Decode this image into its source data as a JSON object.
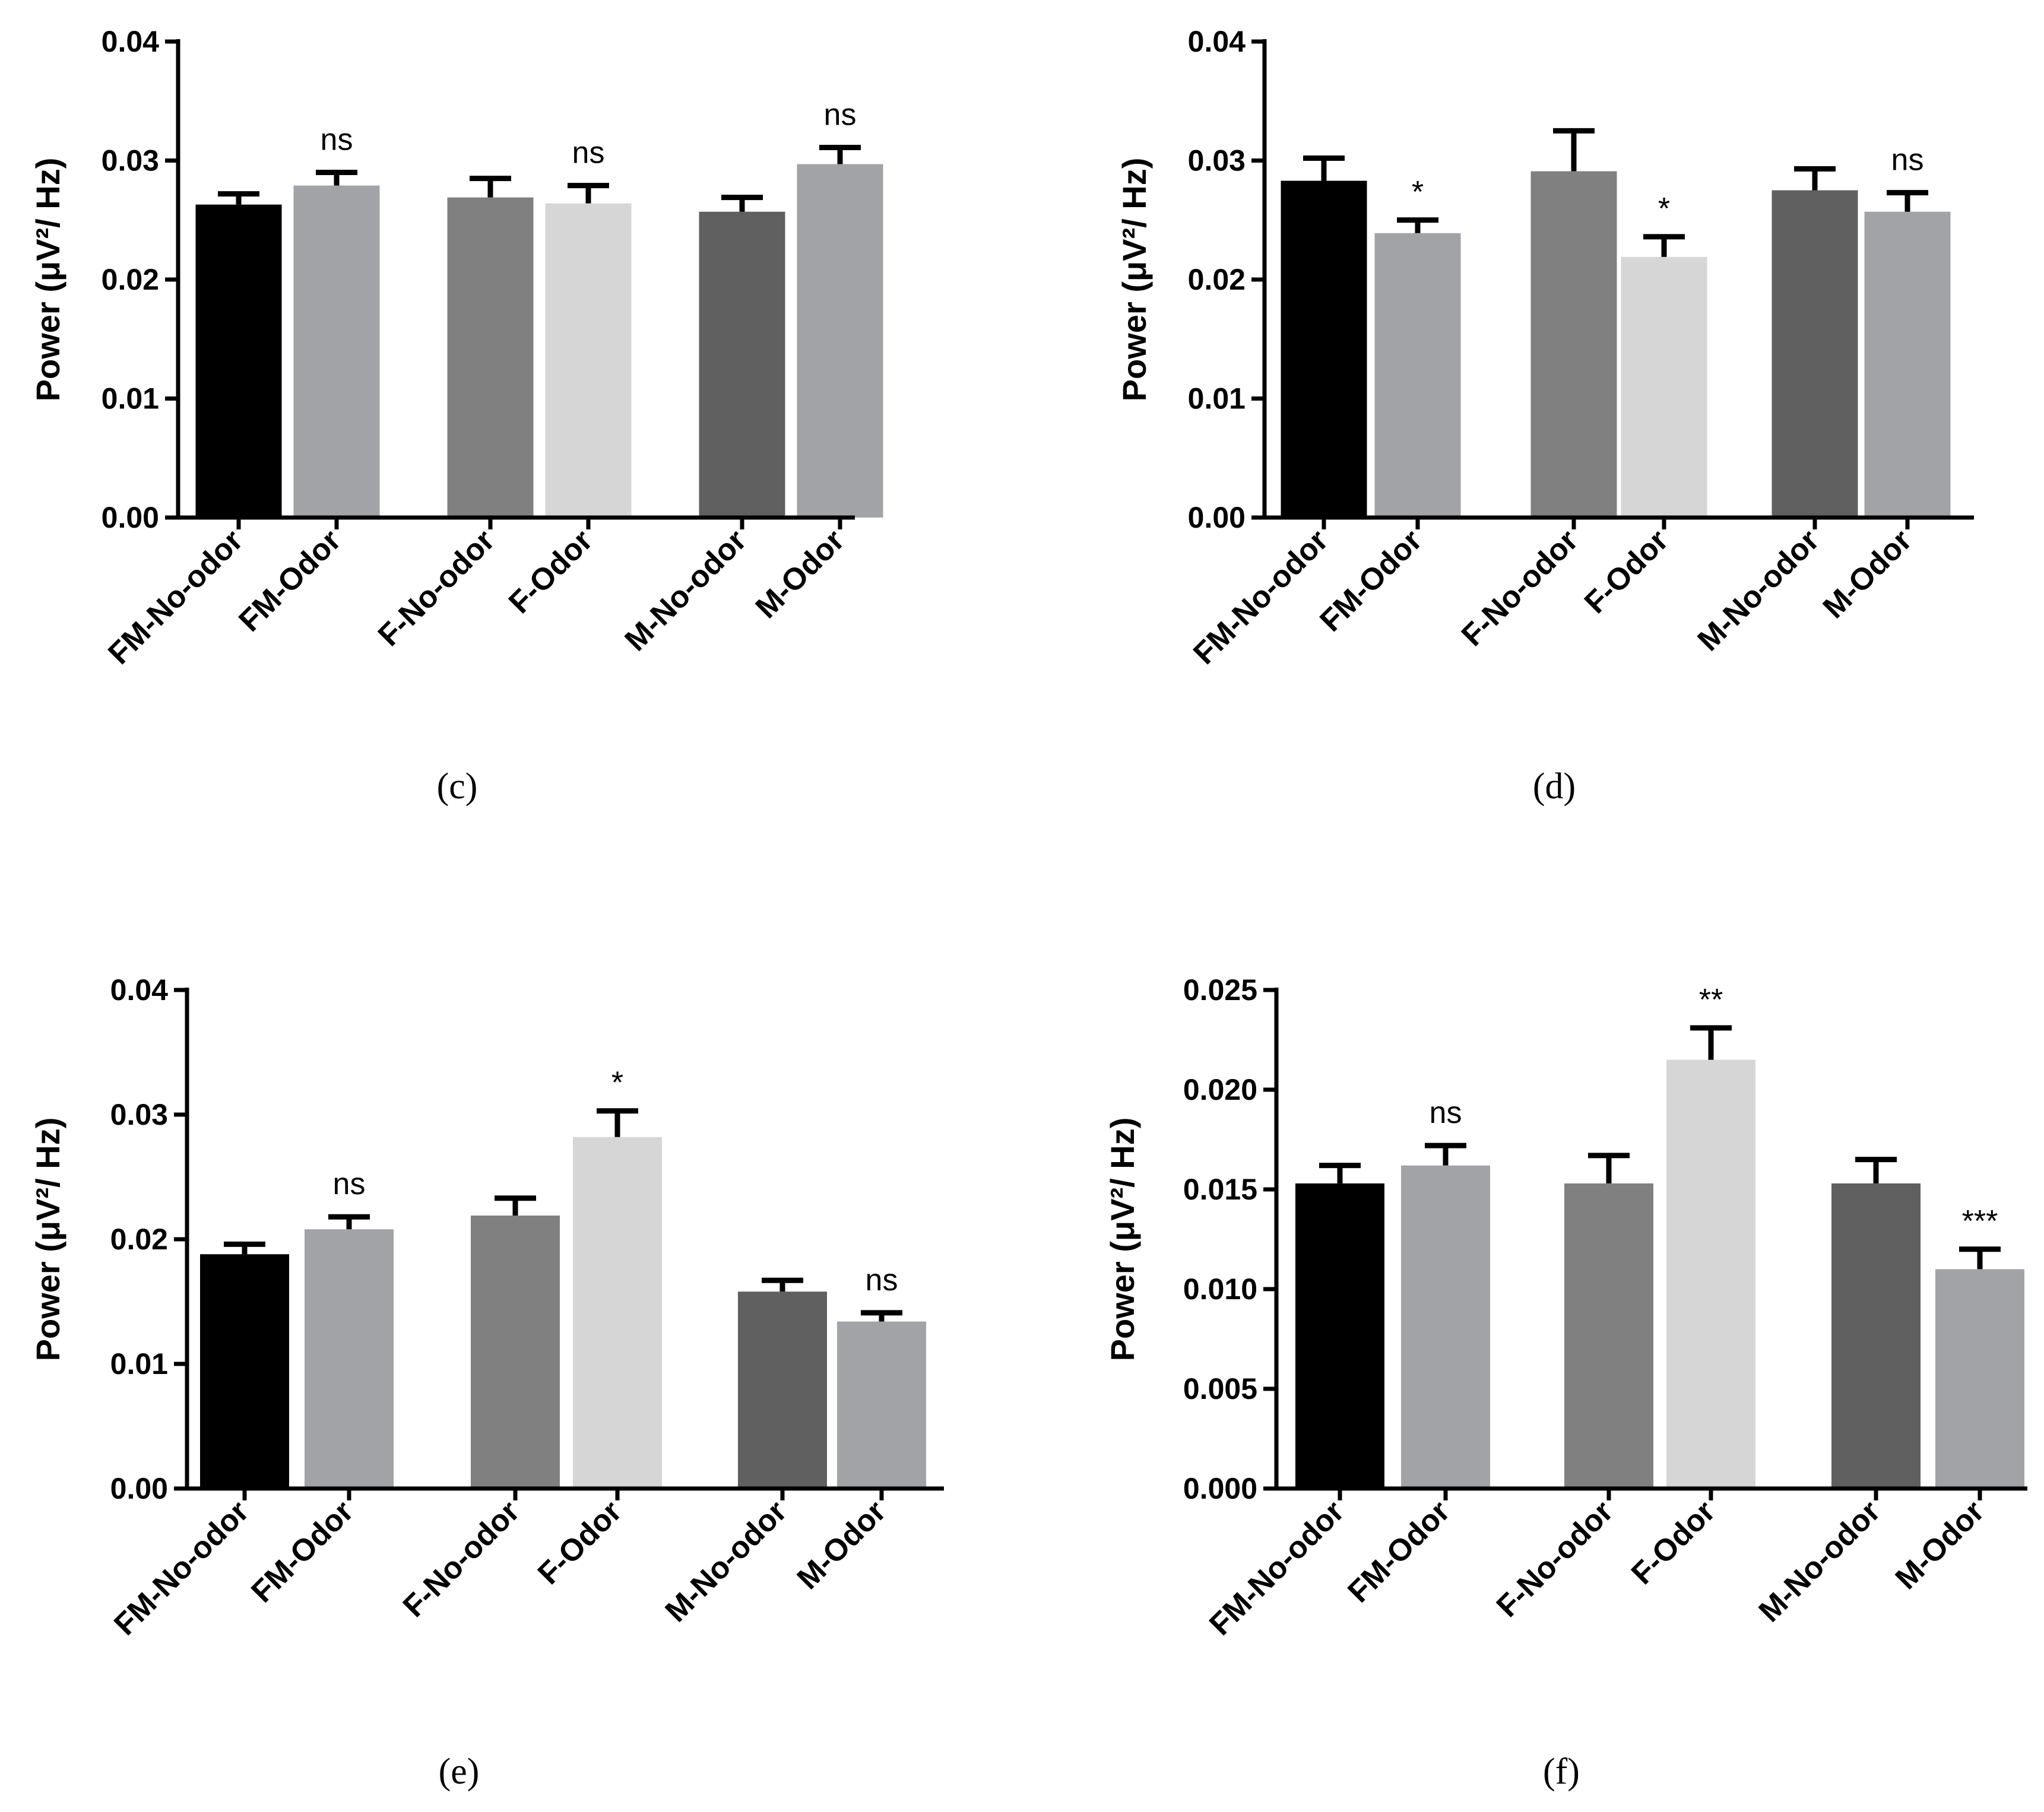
{
  "chart_data": [
    {
      "type": "bar",
      "panel_label": "(c)",
      "ylabel": "Power (μV²/ Hz)",
      "ylim": [
        0,
        0.04
      ],
      "yticks": [
        "0.00",
        "0.01",
        "0.02",
        "0.03",
        "0.04"
      ],
      "categories": [
        "FM-No-odor",
        "FM-Odor",
        "F-No-odor",
        "F-Odor",
        "M-No-odor",
        "M-Odor"
      ],
      "values": [
        0.0263,
        0.0279,
        0.0269,
        0.0264,
        0.0257,
        0.0297
      ],
      "errors": [
        0.0009,
        0.0011,
        0.0016,
        0.0015,
        0.0012,
        0.0014
      ],
      "significance": [
        "",
        "ns",
        "",
        "ns",
        "",
        "ns"
      ],
      "colors": [
        "#000000",
        "#a2a3a6",
        "#808080",
        "#d6d6d6",
        "#606060",
        "#a2a3a6"
      ]
    },
    {
      "type": "bar",
      "panel_label": "(d)",
      "ylabel": "Power (μV²/ Hz)",
      "ylim": [
        0,
        0.04
      ],
      "yticks": [
        "0.00",
        "0.01",
        "0.02",
        "0.03",
        "0.04"
      ],
      "categories": [
        "FM-No-odor",
        "FM-Odor",
        "F-No-odor",
        "F-Odor",
        "M-No-odor",
        "M-Odor"
      ],
      "values": [
        0.0283,
        0.0239,
        0.0291,
        0.0219,
        0.0275,
        0.0257
      ],
      "errors": [
        0.0019,
        0.0011,
        0.0034,
        0.0017,
        0.0018,
        0.0016
      ],
      "significance": [
        "",
        "*",
        "",
        "*",
        "",
        "ns"
      ],
      "colors": [
        "#000000",
        "#a2a3a6",
        "#808080",
        "#d6d6d6",
        "#606060",
        "#a2a3a6"
      ]
    },
    {
      "type": "bar",
      "panel_label": "(e)",
      "ylabel": "Power (μV²/ Hz)",
      "ylim": [
        0,
        0.04
      ],
      "yticks": [
        "0.00",
        "0.01",
        "0.02",
        "0.03",
        "0.04"
      ],
      "categories": [
        "FM-No-odor",
        "FM-Odor",
        "F-No-odor",
        "F-Odor",
        "M-No-odor",
        "M-Odor"
      ],
      "values": [
        0.0188,
        0.0208,
        0.0219,
        0.0282,
        0.0158,
        0.0134
      ],
      "errors": [
        0.0008,
        0.001,
        0.0014,
        0.0021,
        0.0009,
        0.0007
      ],
      "significance": [
        "",
        "ns",
        "",
        "*",
        "",
        "ns"
      ],
      "colors": [
        "#000000",
        "#a2a3a6",
        "#808080",
        "#d6d6d6",
        "#606060",
        "#a2a3a6"
      ]
    },
    {
      "type": "bar",
      "panel_label": "(f)",
      "ylabel": "Power (μV²/ Hz)",
      "ylim": [
        0,
        0.025
      ],
      "yticks": [
        "0.000",
        "0.005",
        "0.010",
        "0.015",
        "0.020",
        "0.025"
      ],
      "categories": [
        "FM-No-odor",
        "FM-Odor",
        "F-No-odor",
        "F-Odor",
        "M-No-odor",
        "M-Odor"
      ],
      "values": [
        0.0153,
        0.0162,
        0.0153,
        0.0215,
        0.0153,
        0.011
      ],
      "errors": [
        0.0009,
        0.001,
        0.0014,
        0.0016,
        0.0012,
        0.001
      ],
      "significance": [
        "",
        "ns",
        "",
        "**",
        "",
        "***"
      ],
      "colors": [
        "#000000",
        "#a2a3a6",
        "#808080",
        "#d6d6d6",
        "#606060",
        "#a2a3a6"
      ]
    }
  ]
}
